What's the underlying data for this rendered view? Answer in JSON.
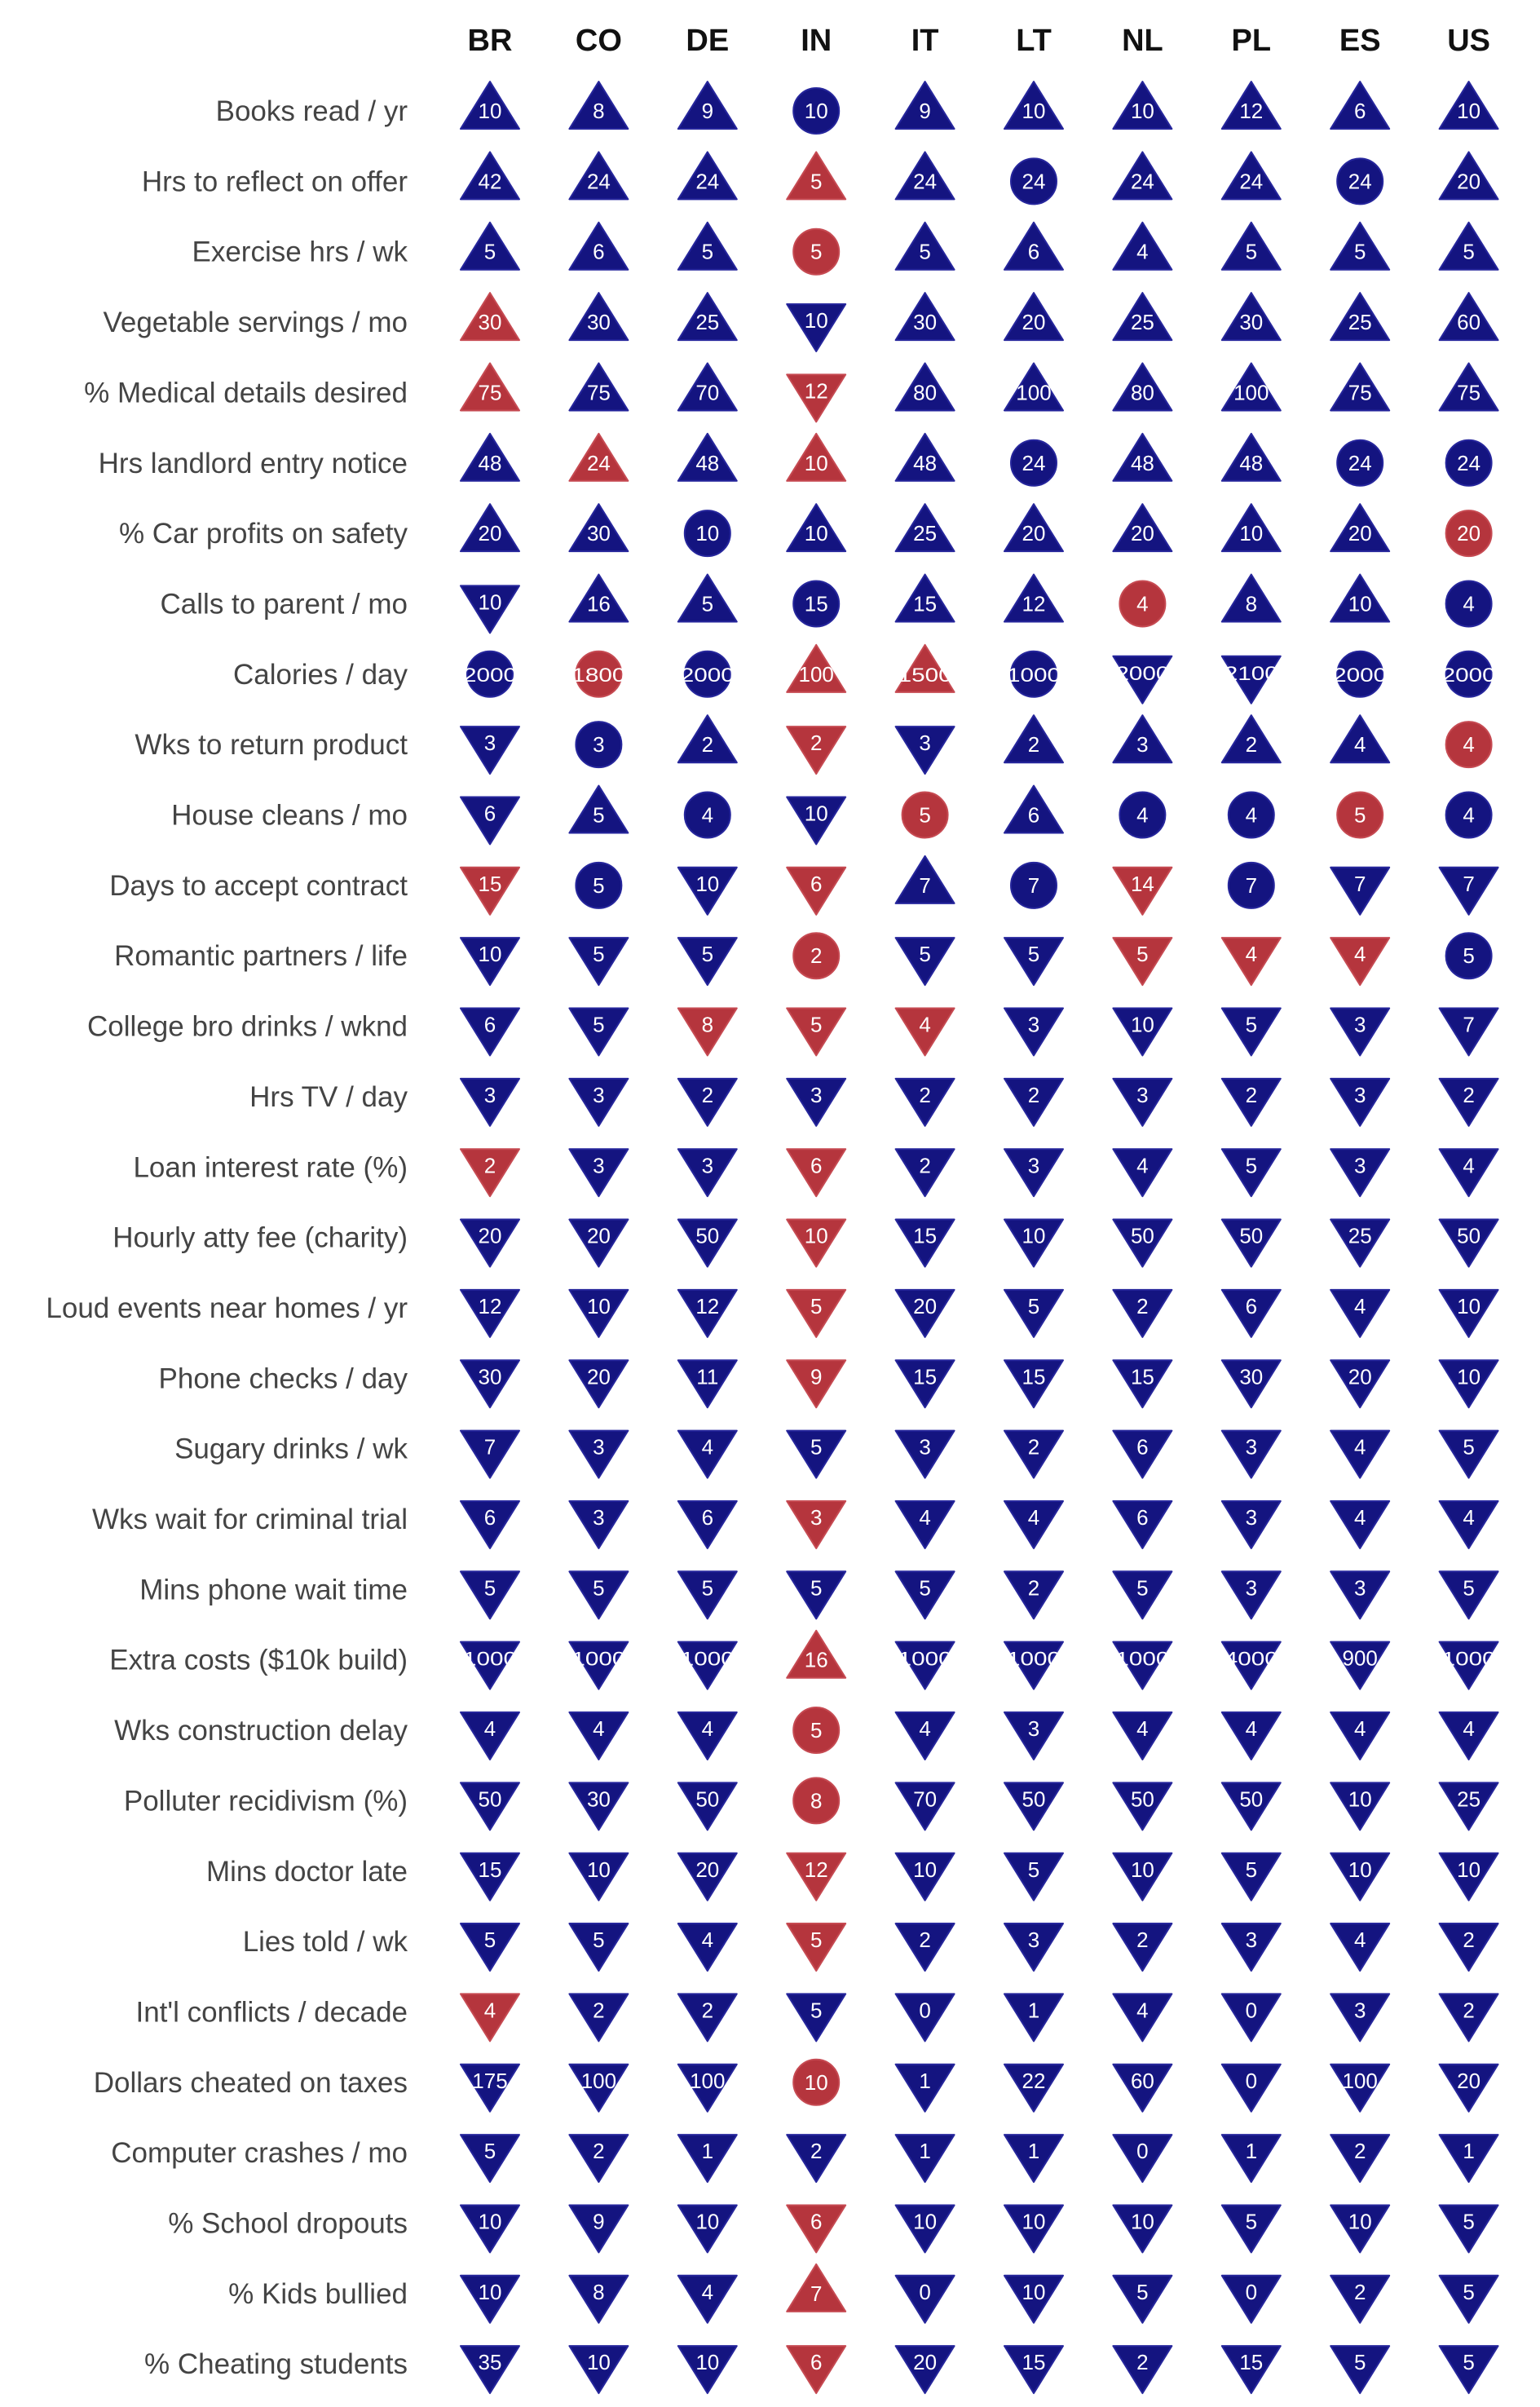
{
  "colors": {
    "blue": "#141480",
    "red": "#b5353d"
  },
  "chart_data": {
    "type": "table",
    "columns": [
      "BR",
      "CO",
      "DE",
      "IN",
      "IT",
      "LT",
      "NL",
      "PL",
      "ES",
      "US"
    ],
    "marker_legend": {
      "u": "triangle-up",
      "d": "triangle-down",
      "c": "circle",
      "B": "blue",
      "R": "red"
    },
    "rows": [
      {
        "label": "Books read / yr",
        "values": [
          "10",
          "8",
          "9",
          "10",
          "9",
          "10",
          "10",
          "12",
          "6",
          "10"
        ],
        "markers": [
          "uB",
          "uB",
          "uB",
          "cB",
          "uB",
          "uB",
          "uB",
          "uB",
          "uB",
          "uB"
        ]
      },
      {
        "label": "Hrs to reflect on offer",
        "values": [
          "42",
          "24",
          "24",
          "5",
          "24",
          "24",
          "24",
          "24",
          "24",
          "20"
        ],
        "markers": [
          "uB",
          "uB",
          "uB",
          "uR",
          "uB",
          "cB",
          "uB",
          "uB",
          "cB",
          "uB"
        ]
      },
      {
        "label": "Exercise hrs / wk",
        "values": [
          "5",
          "6",
          "5",
          "5",
          "5",
          "6",
          "4",
          "5",
          "5",
          "5"
        ],
        "markers": [
          "uB",
          "uB",
          "uB",
          "cR",
          "uB",
          "uB",
          "uB",
          "uB",
          "uB",
          "uB"
        ]
      },
      {
        "label": "Vegetable servings / mo",
        "values": [
          "30",
          "30",
          "25",
          "10",
          "30",
          "20",
          "25",
          "30",
          "25",
          "60"
        ],
        "markers": [
          "uR",
          "uB",
          "uB",
          "dB",
          "uB",
          "uB",
          "uB",
          "uB",
          "uB",
          "uB"
        ]
      },
      {
        "label": "% Medical details desired",
        "values": [
          "75",
          "75",
          "70",
          "12",
          "80",
          "100",
          "80",
          "100",
          "75",
          "75"
        ],
        "markers": [
          "uR",
          "uB",
          "uB",
          "dR",
          "uB",
          "uB",
          "uB",
          "uB",
          "uB",
          "uB"
        ]
      },
      {
        "label": "Hrs landlord entry notice",
        "values": [
          "48",
          "24",
          "48",
          "10",
          "48",
          "24",
          "48",
          "48",
          "24",
          "24"
        ],
        "markers": [
          "uB",
          "uR",
          "uB",
          "uR",
          "uB",
          "cB",
          "uB",
          "uB",
          "cB",
          "cB"
        ]
      },
      {
        "label": "% Car profits on safety",
        "values": [
          "20",
          "30",
          "10",
          "10",
          "25",
          "20",
          "20",
          "10",
          "20",
          "20"
        ],
        "markers": [
          "uB",
          "uB",
          "cB",
          "uB",
          "uB",
          "uB",
          "uB",
          "uB",
          "uB",
          "cR"
        ]
      },
      {
        "label": "Calls to parent / mo",
        "values": [
          "10",
          "16",
          "5",
          "15",
          "15",
          "12",
          "4",
          "8",
          "10",
          "4"
        ],
        "markers": [
          "dB",
          "uB",
          "uB",
          "cB",
          "uB",
          "uB",
          "cR",
          "uB",
          "uB",
          "cB"
        ]
      },
      {
        "label": "Calories / day",
        "values": [
          "2000",
          "1800",
          "2000",
          "100",
          "1500",
          "1000",
          "2000",
          "2100",
          "2000",
          "2000"
        ],
        "markers": [
          "cB",
          "cR",
          "cB",
          "uR",
          "uR",
          "cB",
          "dB",
          "dB",
          "cB",
          "cB"
        ]
      },
      {
        "label": "Wks to return product",
        "values": [
          "3",
          "3",
          "2",
          "2",
          "3",
          "2",
          "3",
          "2",
          "4",
          "4"
        ],
        "markers": [
          "dB",
          "cB",
          "uB",
          "dR",
          "dB",
          "uB",
          "uB",
          "uB",
          "uB",
          "cR"
        ]
      },
      {
        "label": "House cleans / mo",
        "values": [
          "6",
          "5",
          "4",
          "10",
          "5",
          "6",
          "4",
          "4",
          "5",
          "4"
        ],
        "markers": [
          "dB",
          "uB",
          "cB",
          "dB",
          "cR",
          "uB",
          "cB",
          "cB",
          "cR",
          "cB"
        ]
      },
      {
        "label": "Days to accept contract",
        "values": [
          "15",
          "5",
          "10",
          "6",
          "7",
          "7",
          "14",
          "7",
          "7",
          "7"
        ],
        "markers": [
          "dR",
          "cB",
          "dB",
          "dR",
          "uB",
          "cB",
          "dR",
          "cB",
          "dB",
          "dB"
        ]
      },
      {
        "label": "Romantic partners / life",
        "values": [
          "10",
          "5",
          "5",
          "2",
          "5",
          "5",
          "5",
          "4",
          "4",
          "5"
        ],
        "markers": [
          "dB",
          "dB",
          "dB",
          "cR",
          "dB",
          "dB",
          "dR",
          "dR",
          "dR",
          "cB"
        ]
      },
      {
        "label": "College bro drinks / wknd",
        "values": [
          "6",
          "5",
          "8",
          "5",
          "4",
          "3",
          "10",
          "5",
          "3",
          "7"
        ],
        "markers": [
          "dB",
          "dB",
          "dR",
          "dR",
          "dR",
          "dB",
          "dB",
          "dB",
          "dB",
          "dB"
        ]
      },
      {
        "label": "Hrs TV / day",
        "values": [
          "3",
          "3",
          "2",
          "3",
          "2",
          "2",
          "3",
          "2",
          "3",
          "2"
        ],
        "markers": [
          "dB",
          "dB",
          "dB",
          "dB",
          "dB",
          "dB",
          "dB",
          "dB",
          "dB",
          "dB"
        ]
      },
      {
        "label": "Loan interest rate (%)",
        "values": [
          "2",
          "3",
          "3",
          "6",
          "2",
          "3",
          "4",
          "5",
          "3",
          "4"
        ],
        "markers": [
          "dR",
          "dB",
          "dB",
          "dR",
          "dB",
          "dB",
          "dB",
          "dB",
          "dB",
          "dB"
        ]
      },
      {
        "label": "Hourly atty fee (charity)",
        "values": [
          "20",
          "20",
          "50",
          "10",
          "15",
          "10",
          "50",
          "50",
          "25",
          "50"
        ],
        "markers": [
          "dB",
          "dB",
          "dB",
          "dR",
          "dB",
          "dB",
          "dB",
          "dB",
          "dB",
          "dB"
        ]
      },
      {
        "label": "Loud events near homes / yr",
        "values": [
          "12",
          "10",
          "12",
          "5",
          "20",
          "5",
          "2",
          "6",
          "4",
          "10"
        ],
        "markers": [
          "dB",
          "dB",
          "dB",
          "dR",
          "dB",
          "dB",
          "dB",
          "dB",
          "dB",
          "dB"
        ]
      },
      {
        "label": "Phone checks / day",
        "values": [
          "30",
          "20",
          "11",
          "9",
          "15",
          "15",
          "15",
          "30",
          "20",
          "10"
        ],
        "markers": [
          "dB",
          "dB",
          "dB",
          "dR",
          "dB",
          "dB",
          "dB",
          "dB",
          "dB",
          "dB"
        ]
      },
      {
        "label": "Sugary drinks / wk",
        "values": [
          "7",
          "3",
          "4",
          "5",
          "3",
          "2",
          "6",
          "3",
          "4",
          "5"
        ],
        "markers": [
          "dB",
          "dB",
          "dB",
          "dB",
          "dB",
          "dB",
          "dB",
          "dB",
          "dB",
          "dB"
        ]
      },
      {
        "label": "Wks wait for criminal trial",
        "values": [
          "6",
          "3",
          "6",
          "3",
          "4",
          "4",
          "6",
          "3",
          "4",
          "4"
        ],
        "markers": [
          "dB",
          "dB",
          "dB",
          "dR",
          "dB",
          "dB",
          "dB",
          "dB",
          "dB",
          "dB"
        ]
      },
      {
        "label": "Mins phone wait time",
        "values": [
          "5",
          "5",
          "5",
          "5",
          "5",
          "2",
          "5",
          "3",
          "3",
          "5"
        ],
        "markers": [
          "dB",
          "dB",
          "dB",
          "dB",
          "dB",
          "dB",
          "dB",
          "dB",
          "dB",
          "dB"
        ]
      },
      {
        "label": "Extra costs ($10k build)",
        "values": [
          "1000",
          "1000",
          "1000",
          "16",
          "1000",
          "1000",
          "1000",
          "4000",
          "900",
          "1000"
        ],
        "markers": [
          "dB",
          "dB",
          "dB",
          "uR",
          "dB",
          "dB",
          "dB",
          "dB",
          "dB",
          "dB"
        ]
      },
      {
        "label": "Wks construction delay",
        "values": [
          "4",
          "4",
          "4",
          "5",
          "4",
          "3",
          "4",
          "4",
          "4",
          "4"
        ],
        "markers": [
          "dB",
          "dB",
          "dB",
          "cR",
          "dB",
          "dB",
          "dB",
          "dB",
          "dB",
          "dB"
        ]
      },
      {
        "label": "Polluter recidivism (%)",
        "values": [
          "50",
          "30",
          "50",
          "8",
          "70",
          "50",
          "50",
          "50",
          "10",
          "25"
        ],
        "markers": [
          "dB",
          "dB",
          "dB",
          "cR",
          "dB",
          "dB",
          "dB",
          "dB",
          "dB",
          "dB"
        ]
      },
      {
        "label": "Mins doctor late",
        "values": [
          "15",
          "10",
          "20",
          "12",
          "10",
          "5",
          "10",
          "5",
          "10",
          "10"
        ],
        "markers": [
          "dB",
          "dB",
          "dB",
          "dR",
          "dB",
          "dB",
          "dB",
          "dB",
          "dB",
          "dB"
        ]
      },
      {
        "label": "Lies told / wk",
        "values": [
          "5",
          "5",
          "4",
          "5",
          "2",
          "3",
          "2",
          "3",
          "4",
          "2"
        ],
        "markers": [
          "dB",
          "dB",
          "dB",
          "dR",
          "dB",
          "dB",
          "dB",
          "dB",
          "dB",
          "dB"
        ]
      },
      {
        "label": "Int'l conflicts / decade",
        "values": [
          "4",
          "2",
          "2",
          "5",
          "0",
          "1",
          "4",
          "0",
          "3",
          "2"
        ],
        "markers": [
          "dR",
          "dB",
          "dB",
          "dB",
          "dB",
          "dB",
          "dB",
          "dB",
          "dB",
          "dB"
        ]
      },
      {
        "label": "Dollars cheated on taxes",
        "values": [
          "175",
          "100",
          "100",
          "10",
          "1",
          "22",
          "60",
          "0",
          "100",
          "20"
        ],
        "markers": [
          "dB",
          "dB",
          "dB",
          "cR",
          "dB",
          "dB",
          "dB",
          "dB",
          "dB",
          "dB"
        ]
      },
      {
        "label": "Computer crashes / mo",
        "values": [
          "5",
          "2",
          "1",
          "2",
          "1",
          "1",
          "0",
          "1",
          "2",
          "1"
        ],
        "markers": [
          "dB",
          "dB",
          "dB",
          "dB",
          "dB",
          "dB",
          "dB",
          "dB",
          "dB",
          "dB"
        ]
      },
      {
        "label": "% School dropouts",
        "values": [
          "10",
          "9",
          "10",
          "6",
          "10",
          "10",
          "10",
          "5",
          "10",
          "5"
        ],
        "markers": [
          "dB",
          "dB",
          "dB",
          "dR",
          "dB",
          "dB",
          "dB",
          "dB",
          "dB",
          "dB"
        ]
      },
      {
        "label": "% Kids bullied",
        "values": [
          "10",
          "8",
          "4",
          "7",
          "0",
          "10",
          "5",
          "0",
          "2",
          "5"
        ],
        "markers": [
          "dB",
          "dB",
          "dB",
          "uR",
          "dB",
          "dB",
          "dB",
          "dB",
          "dB",
          "dB"
        ]
      },
      {
        "label": "% Cheating students",
        "values": [
          "35",
          "10",
          "10",
          "6",
          "20",
          "15",
          "2",
          "15",
          "5",
          "5"
        ],
        "markers": [
          "dB",
          "dB",
          "dB",
          "dR",
          "dB",
          "dB",
          "dB",
          "dB",
          "dB",
          "dB"
        ]
      }
    ]
  }
}
